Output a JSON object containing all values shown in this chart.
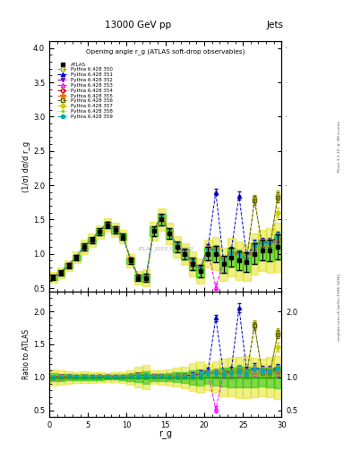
{
  "title_top": "13000 GeV pp",
  "title_right": "Jets",
  "plot_title": "Opening angle r_g (ATLAS soft-drop observables)",
  "watermark": "ATLAS_2019_I1772062",
  "right_label1": "Rivet 3.1.10, ≥ 3M events",
  "right_label2": "mcplots.cern.ch [arXiv:1306.3436]",
  "xlabel": "r_g",
  "ylabel_main": "(1/σ) dσ/d r_g",
  "ylabel_ratio": "Ratio to ATLAS",
  "xlim": [
    0,
    30
  ],
  "ylim_main": [
    0.45,
    4.1
  ],
  "ylim_ratio": [
    0.4,
    2.3
  ],
  "atlas_data_x": [
    0.5,
    1.5,
    2.5,
    3.5,
    4.5,
    5.5,
    6.5,
    7.5,
    8.5,
    9.5,
    10.5,
    11.5,
    12.5,
    13.5,
    14.5,
    15.5,
    16.5,
    17.5,
    18.5,
    19.5,
    20.5,
    21.5,
    22.5,
    23.5,
    24.5,
    25.5,
    26.5,
    27.5,
    28.5,
    29.5
  ],
  "atlas_data_y": [
    0.66,
    0.72,
    0.83,
    0.95,
    1.1,
    1.2,
    1.32,
    1.42,
    1.35,
    1.25,
    0.9,
    0.65,
    0.65,
    1.33,
    1.5,
    1.3,
    1.1,
    1.0,
    0.85,
    0.75,
    1.0,
    1.0,
    0.85,
    0.95,
    0.9,
    0.88,
    1.0,
    1.05,
    1.05,
    1.1
  ],
  "atlas_data_yerr": [
    0.04,
    0.04,
    0.04,
    0.04,
    0.05,
    0.05,
    0.05,
    0.05,
    0.05,
    0.05,
    0.05,
    0.05,
    0.06,
    0.07,
    0.08,
    0.08,
    0.08,
    0.08,
    0.09,
    0.09,
    0.1,
    0.12,
    0.12,
    0.14,
    0.14,
    0.14,
    0.15,
    0.15,
    0.16,
    0.18
  ],
  "series": [
    {
      "label": "Pythia 6.428 350",
      "color": "#aaaa00",
      "linestyle": "--",
      "marker": "s",
      "fillstyle": "none",
      "dy": [
        0.0,
        0.0,
        0.0,
        0.01,
        0.01,
        0.01,
        0.01,
        0.02,
        0.01,
        0.01,
        0.01,
        0.01,
        0.01,
        0.02,
        0.02,
        0.01,
        0.01,
        0.01,
        0.01,
        0.02,
        0.05,
        0.08,
        0.05,
        0.05,
        0.1,
        0.05,
        0.8,
        0.05,
        0.05,
        0.75
      ]
    },
    {
      "label": "Pythia 6.428 351",
      "color": "#0000cc",
      "linestyle": "--",
      "marker": "^",
      "fillstyle": "full",
      "dy": [
        0.0,
        0.01,
        0.01,
        0.01,
        0.01,
        0.01,
        0.02,
        0.02,
        0.02,
        0.01,
        0.02,
        0.02,
        0.01,
        0.03,
        0.03,
        0.02,
        0.02,
        0.02,
        0.03,
        0.04,
        0.1,
        0.9,
        0.05,
        0.1,
        0.95,
        0.08,
        0.15,
        0.12,
        0.12,
        0.15
      ]
    },
    {
      "label": "Pythia 6.428 352",
      "color": "#8800cc",
      "linestyle": "-.",
      "marker": "v",
      "fillstyle": "full",
      "dy": [
        0.0,
        0.01,
        0.01,
        0.01,
        0.01,
        0.01,
        0.02,
        0.02,
        0.02,
        0.01,
        0.02,
        0.02,
        0.01,
        0.03,
        0.03,
        0.02,
        0.02,
        0.02,
        0.02,
        0.03,
        0.08,
        0.05,
        0.04,
        0.06,
        0.08,
        0.05,
        0.1,
        0.1,
        0.1,
        0.12
      ]
    },
    {
      "label": "Pythia 6.428 353",
      "color": "#ff00ff",
      "linestyle": "--",
      "marker": "^",
      "fillstyle": "none",
      "dy": [
        0.0,
        0.0,
        0.0,
        0.01,
        0.01,
        0.01,
        0.01,
        0.02,
        0.01,
        0.01,
        0.01,
        0.01,
        0.01,
        0.02,
        0.02,
        0.01,
        0.01,
        0.01,
        0.01,
        0.02,
        0.05,
        -0.48,
        0.04,
        0.04,
        0.08,
        0.04,
        0.08,
        0.08,
        0.08,
        0.1
      ]
    },
    {
      "label": "Pythia 6.428 354",
      "color": "#cc0000",
      "linestyle": "--",
      "marker": "o",
      "fillstyle": "none",
      "dy": [
        0.0,
        0.01,
        0.01,
        0.01,
        0.01,
        0.01,
        0.02,
        0.02,
        0.02,
        0.01,
        0.02,
        0.02,
        0.01,
        0.02,
        0.02,
        0.01,
        0.01,
        0.01,
        0.02,
        0.02,
        0.06,
        0.06,
        0.04,
        0.06,
        0.1,
        0.05,
        0.1,
        0.1,
        0.1,
        0.12
      ]
    },
    {
      "label": "Pythia 6.428 355",
      "color": "#ff6600",
      "linestyle": "--",
      "marker": "*",
      "fillstyle": "full",
      "dy": [
        0.0,
        0.01,
        0.01,
        0.01,
        0.01,
        0.01,
        0.02,
        0.02,
        0.02,
        0.01,
        0.02,
        0.02,
        0.01,
        0.02,
        0.02,
        0.01,
        0.01,
        0.01,
        0.02,
        0.03,
        0.07,
        0.07,
        0.05,
        0.06,
        0.11,
        0.05,
        0.11,
        0.11,
        0.11,
        0.12
      ]
    },
    {
      "label": "Pythia 6.428 356",
      "color": "#666600",
      "linestyle": "--",
      "marker": "s",
      "fillstyle": "none",
      "dy": [
        0.0,
        0.0,
        0.0,
        0.01,
        0.01,
        0.01,
        0.01,
        0.02,
        0.01,
        0.01,
        0.01,
        0.01,
        0.01,
        0.02,
        0.02,
        0.01,
        0.01,
        0.01,
        0.01,
        0.02,
        0.05,
        0.05,
        0.04,
        0.05,
        0.1,
        0.05,
        0.78,
        0.08,
        0.08,
        0.72
      ]
    },
    {
      "label": "Pythia 6.428 357",
      "color": "#cccc00",
      "linestyle": "--",
      "marker": "D",
      "fillstyle": "full",
      "dy": [
        0.0,
        0.0,
        0.0,
        0.01,
        0.01,
        0.01,
        0.01,
        0.01,
        0.01,
        0.01,
        0.01,
        0.01,
        0.01,
        0.02,
        0.01,
        0.01,
        0.01,
        0.01,
        0.01,
        0.02,
        0.05,
        0.05,
        0.04,
        0.05,
        0.09,
        0.04,
        0.1,
        0.09,
        0.09,
        0.5
      ]
    },
    {
      "label": "Pythia 6.428 358",
      "color": "#88cc00",
      "linestyle": ":",
      "marker": ".",
      "fillstyle": "full",
      "dy": [
        0.0,
        0.0,
        0.0,
        0.01,
        0.01,
        0.01,
        0.01,
        0.01,
        0.01,
        0.01,
        0.01,
        0.01,
        0.01,
        0.01,
        0.01,
        0.01,
        0.01,
        0.01,
        0.01,
        0.02,
        0.05,
        0.05,
        0.04,
        0.05,
        0.09,
        0.04,
        0.1,
        0.09,
        0.09,
        0.12
      ]
    },
    {
      "label": "Pythia 6.428 359",
      "color": "#00aaaa",
      "linestyle": "--",
      "marker": "o",
      "fillstyle": "full",
      "dy": [
        0.0,
        0.0,
        0.01,
        0.01,
        0.01,
        0.01,
        0.01,
        0.02,
        0.01,
        0.01,
        0.01,
        0.01,
        0.01,
        0.02,
        0.02,
        0.01,
        0.01,
        0.01,
        0.02,
        0.02,
        0.06,
        0.06,
        0.04,
        0.06,
        0.1,
        0.05,
        0.12,
        0.1,
        0.1,
        0.14
      ]
    }
  ],
  "band_color_inner": "#00bb00",
  "band_color_outer": "#dddd00",
  "band_alpha_inner": 0.45,
  "band_alpha_outer": 0.45
}
